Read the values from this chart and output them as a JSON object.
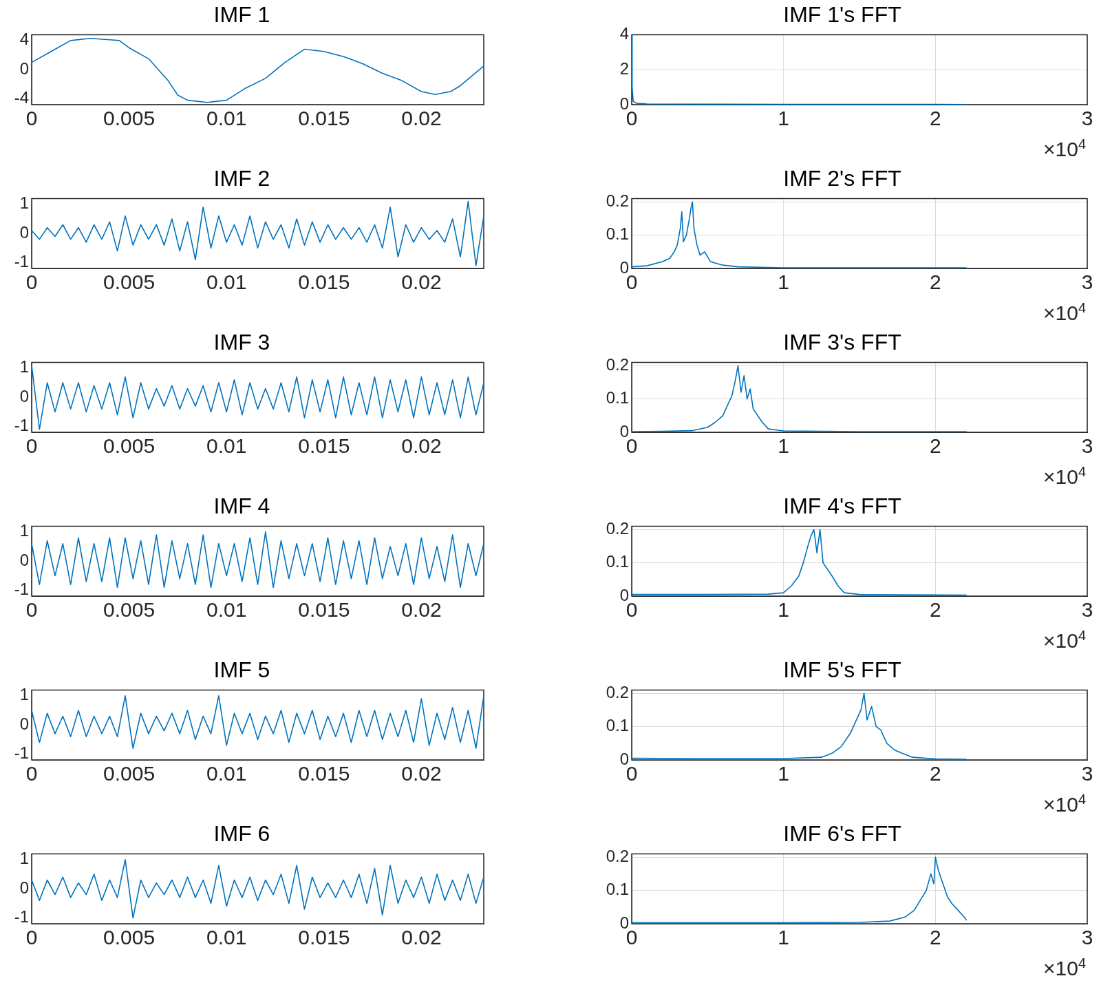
{
  "chart_data": [
    {
      "type": "line",
      "title": "IMF 1",
      "xlim": [
        0,
        0.0232
      ],
      "xticks": [
        0,
        0.005,
        0.01,
        0.015,
        0.02
      ],
      "ylim": [
        -4.8,
        4.8
      ],
      "yticks": [
        -4,
        0,
        4
      ],
      "grid": false,
      "series": [
        {
          "color": "#0072bd",
          "x": [
            0,
            0.001,
            0.002,
            0.003,
            0.004,
            0.0045,
            0.005,
            0.006,
            0.007,
            0.0075,
            0.008,
            0.009,
            0.01,
            0.011,
            0.012,
            0.013,
            0.014,
            0.015,
            0.016,
            0.017,
            0.018,
            0.019,
            0.02,
            0.0207,
            0.0215,
            0.022,
            0.0232
          ],
          "values": [
            1,
            2.5,
            4,
            4.3,
            4.1,
            4,
            3,
            1.5,
            -1.5,
            -3.5,
            -4.2,
            -4.5,
            -4.2,
            -2.5,
            -1.2,
            1,
            2.8,
            2.5,
            1.8,
            0.8,
            -0.5,
            -1.5,
            -3,
            -3.4,
            -3,
            -2.2,
            0.5
          ]
        }
      ]
    },
    {
      "type": "line",
      "title": "IMF 1's FFT",
      "xlim": [
        0,
        3
      ],
      "xticks": [
        0,
        1,
        2,
        3
      ],
      "ylim": [
        0,
        4
      ],
      "yticks": [
        0,
        2,
        4
      ],
      "grid": true,
      "annotations": [
        "×10$^{4}$"
      ],
      "series": [
        {
          "color": "#0072bd",
          "x": [
            0,
            0.003,
            0.01,
            0.03,
            0.1,
            0.5,
            1,
            1.5,
            2,
            2.205
          ],
          "values": [
            4,
            1,
            0.2,
            0.08,
            0.04,
            0.03,
            0.02,
            0.02,
            0.02,
            0.01
          ]
        }
      ]
    },
    {
      "type": "line",
      "title": "IMF 2",
      "xlim": [
        0,
        0.0232
      ],
      "xticks": [
        0,
        0.005,
        0.01,
        0.015,
        0.02
      ],
      "ylim": [
        -1.2,
        1.2
      ],
      "yticks": [
        -1,
        0,
        1
      ],
      "grid": false,
      "series": [
        {
          "color": "#0072bd",
          "x": [
            0,
            0.0004,
            0.0008,
            0.0012,
            0.0016,
            0.002,
            0.0024,
            0.0028,
            0.0032,
            0.0036,
            0.004,
            0.0044,
            0.0048,
            0.0052,
            0.0056,
            0.006,
            0.0064,
            0.0068,
            0.0072,
            0.0076,
            0.008,
            0.0084,
            0.0088,
            0.0092,
            0.0096,
            0.01,
            0.0104,
            0.0108,
            0.0112,
            0.0116,
            0.012,
            0.0124,
            0.0128,
            0.0132,
            0.0136,
            0.014,
            0.0144,
            0.0148,
            0.0152,
            0.0156,
            0.016,
            0.0164,
            0.0168,
            0.0172,
            0.0176,
            0.018,
            0.0184,
            0.0188,
            0.0192,
            0.0196,
            0.02,
            0.0204,
            0.0208,
            0.0212,
            0.0216,
            0.022,
            0.0224,
            0.0228,
            0.0232
          ],
          "values": [
            0.1,
            -0.2,
            0.2,
            -0.1,
            0.3,
            -0.2,
            0.2,
            -0.3,
            0.3,
            -0.2,
            0.4,
            -0.6,
            0.6,
            -0.4,
            0.3,
            -0.2,
            0.3,
            -0.4,
            0.5,
            -0.6,
            0.4,
            -0.9,
            0.9,
            -0.5,
            0.6,
            -0.3,
            0.3,
            -0.4,
            0.6,
            -0.5,
            0.4,
            -0.2,
            0.3,
            -0.5,
            0.5,
            -0.4,
            0.4,
            -0.3,
            0.3,
            -0.2,
            0.2,
            -0.2,
            0.2,
            -0.3,
            0.3,
            -0.5,
            0.9,
            -0.8,
            0.3,
            -0.3,
            0.2,
            -0.2,
            0.1,
            -0.3,
            0.5,
            -0.8,
            1.1,
            -1.1,
            0.6
          ]
        }
      ]
    },
    {
      "type": "line",
      "title": "IMF 2's FFT",
      "xlim": [
        0,
        3
      ],
      "xticks": [
        0,
        1,
        2,
        3
      ],
      "ylim": [
        0,
        0.21
      ],
      "yticks": [
        0,
        0.1,
        0.2
      ],
      "grid": true,
      "annotations": [
        "×10$^{4}$"
      ],
      "series": [
        {
          "color": "#0072bd",
          "x": [
            0,
            0.1,
            0.2,
            0.25,
            0.28,
            0.3,
            0.32,
            0.33,
            0.34,
            0.36,
            0.38,
            0.39,
            0.4,
            0.41,
            0.43,
            0.45,
            0.48,
            0.52,
            0.6,
            0.7,
            1,
            1.5,
            2.205
          ],
          "values": [
            0.005,
            0.008,
            0.02,
            0.03,
            0.05,
            0.07,
            0.12,
            0.17,
            0.08,
            0.1,
            0.15,
            0.18,
            0.2,
            0.12,
            0.07,
            0.04,
            0.05,
            0.02,
            0.01,
            0.005,
            0.002,
            0.002,
            0.002
          ]
        }
      ]
    },
    {
      "type": "line",
      "title": "IMF 3",
      "xlim": [
        0,
        0.0232
      ],
      "xticks": [
        0,
        0.005,
        0.01,
        0.015,
        0.02
      ],
      "ylim": [
        -1.2,
        1.2
      ],
      "yticks": [
        -1,
        0,
        1
      ],
      "grid": false,
      "series": [
        {
          "color": "#0072bd",
          "x": [
            0,
            0.0004,
            0.0008,
            0.0012,
            0.0016,
            0.002,
            0.0024,
            0.0028,
            0.0032,
            0.0036,
            0.004,
            0.0044,
            0.0048,
            0.0052,
            0.0056,
            0.006,
            0.0064,
            0.0068,
            0.0072,
            0.0076,
            0.008,
            0.0084,
            0.0088,
            0.0092,
            0.0096,
            0.01,
            0.0104,
            0.0108,
            0.0112,
            0.0116,
            0.012,
            0.0124,
            0.0128,
            0.0132,
            0.0136,
            0.014,
            0.0144,
            0.0148,
            0.0152,
            0.0156,
            0.016,
            0.0164,
            0.0168,
            0.0172,
            0.0176,
            0.018,
            0.0184,
            0.0188,
            0.0192,
            0.0196,
            0.02,
            0.0204,
            0.0208,
            0.0212,
            0.0216,
            0.022,
            0.0224,
            0.0228,
            0.0232
          ],
          "values": [
            1.1,
            -1.1,
            0.5,
            -0.5,
            0.5,
            -0.4,
            0.5,
            -0.5,
            0.4,
            -0.4,
            0.5,
            -0.6,
            0.7,
            -0.7,
            0.5,
            -0.4,
            0.3,
            -0.3,
            0.4,
            -0.4,
            0.3,
            -0.3,
            0.4,
            -0.5,
            0.5,
            -0.5,
            0.6,
            -0.6,
            0.5,
            -0.4,
            0.3,
            -0.4,
            0.5,
            -0.5,
            0.7,
            -0.7,
            0.6,
            -0.5,
            0.6,
            -0.7,
            0.7,
            -0.6,
            0.5,
            -0.6,
            0.7,
            -0.7,
            0.6,
            -0.5,
            0.6,
            -0.7,
            0.7,
            -0.6,
            0.5,
            -0.6,
            0.6,
            -0.7,
            0.7,
            -0.6,
            0.5
          ]
        }
      ]
    },
    {
      "type": "line",
      "title": "IMF 3's FFT",
      "xlim": [
        0,
        3
      ],
      "xticks": [
        0,
        1,
        2,
        3
      ],
      "ylim": [
        0,
        0.21
      ],
      "yticks": [
        0,
        0.1,
        0.2
      ],
      "grid": true,
      "annotations": [
        "×10$^{4}$"
      ],
      "series": [
        {
          "color": "#0072bd",
          "x": [
            0,
            0.2,
            0.4,
            0.5,
            0.55,
            0.6,
            0.63,
            0.66,
            0.68,
            0.7,
            0.72,
            0.74,
            0.76,
            0.78,
            0.8,
            0.83,
            0.86,
            0.9,
            1,
            1.5,
            2.205
          ],
          "values": [
            0.002,
            0.003,
            0.005,
            0.015,
            0.03,
            0.05,
            0.08,
            0.11,
            0.15,
            0.2,
            0.12,
            0.17,
            0.1,
            0.13,
            0.07,
            0.05,
            0.03,
            0.01,
            0.004,
            0.002,
            0.002
          ]
        }
      ]
    },
    {
      "type": "line",
      "title": "IMF 4",
      "xlim": [
        0,
        0.0232
      ],
      "xticks": [
        0,
        0.005,
        0.01,
        0.015,
        0.02
      ],
      "ylim": [
        -1.2,
        1.2
      ],
      "yticks": [
        -1,
        0,
        1
      ],
      "grid": false,
      "series": [
        {
          "color": "#0072bd",
          "x": [
            0,
            0.0004,
            0.0008,
            0.0012,
            0.0016,
            0.002,
            0.0024,
            0.0028,
            0.0032,
            0.0036,
            0.004,
            0.0044,
            0.0048,
            0.0052,
            0.0056,
            0.006,
            0.0064,
            0.0068,
            0.0072,
            0.0076,
            0.008,
            0.0084,
            0.0088,
            0.0092,
            0.0096,
            0.01,
            0.0104,
            0.0108,
            0.0112,
            0.0116,
            0.012,
            0.0124,
            0.0128,
            0.0132,
            0.0136,
            0.014,
            0.0144,
            0.0148,
            0.0152,
            0.0156,
            0.016,
            0.0164,
            0.0168,
            0.0172,
            0.0176,
            0.018,
            0.0184,
            0.0188,
            0.0192,
            0.0196,
            0.02,
            0.0204,
            0.0208,
            0.0212,
            0.0216,
            0.022,
            0.0224,
            0.0228,
            0.0232
          ],
          "values": [
            0.6,
            -0.8,
            0.7,
            -0.5,
            0.6,
            -0.8,
            0.8,
            -0.7,
            0.6,
            -0.7,
            0.8,
            -0.9,
            0.8,
            -0.6,
            0.7,
            -0.8,
            0.9,
            -0.9,
            0.7,
            -0.6,
            0.6,
            -0.8,
            0.9,
            -0.9,
            0.6,
            -0.5,
            0.6,
            -0.7,
            0.8,
            -0.8,
            1.0,
            -0.9,
            0.7,
            -0.6,
            0.6,
            -0.5,
            0.6,
            -0.7,
            0.8,
            -0.8,
            0.7,
            -0.6,
            0.7,
            -0.8,
            0.8,
            -0.6,
            0.5,
            -0.5,
            0.6,
            -0.8,
            0.8,
            -0.6,
            0.5,
            -0.7,
            0.9,
            -0.9,
            0.6,
            -0.5,
            0.6
          ]
        }
      ]
    },
    {
      "type": "line",
      "title": "IMF 4's FFT",
      "xlim": [
        0,
        3
      ],
      "xticks": [
        0,
        1,
        2,
        3
      ],
      "ylim": [
        0,
        0.21
      ],
      "yticks": [
        0,
        0.1,
        0.2
      ],
      "grid": true,
      "annotations": [
        "×10$^{4}$"
      ],
      "series": [
        {
          "color": "#0072bd",
          "x": [
            0,
            0.5,
            0.9,
            1,
            1.05,
            1.1,
            1.13,
            1.16,
            1.18,
            1.2,
            1.22,
            1.24,
            1.26,
            1.29,
            1.32,
            1.36,
            1.4,
            1.5,
            2.205
          ],
          "values": [
            0.005,
            0.005,
            0.006,
            0.01,
            0.03,
            0.06,
            0.1,
            0.15,
            0.18,
            0.2,
            0.13,
            0.2,
            0.1,
            0.08,
            0.06,
            0.03,
            0.01,
            0.005,
            0.003
          ]
        }
      ]
    },
    {
      "type": "line",
      "title": "IMF 5",
      "xlim": [
        0,
        0.0232
      ],
      "xticks": [
        0,
        0.005,
        0.01,
        0.015,
        0.02
      ],
      "ylim": [
        -1.2,
        1.2
      ],
      "yticks": [
        -1,
        0,
        1
      ],
      "grid": false,
      "series": [
        {
          "color": "#0072bd",
          "x": [
            0,
            0.0004,
            0.0008,
            0.0012,
            0.0016,
            0.002,
            0.0024,
            0.0028,
            0.0032,
            0.0036,
            0.004,
            0.0044,
            0.0048,
            0.0052,
            0.0056,
            0.006,
            0.0064,
            0.0068,
            0.0072,
            0.0076,
            0.008,
            0.0084,
            0.0088,
            0.0092,
            0.0096,
            0.01,
            0.0104,
            0.0108,
            0.0112,
            0.0116,
            0.012,
            0.0124,
            0.0128,
            0.0132,
            0.0136,
            0.014,
            0.0144,
            0.0148,
            0.0152,
            0.0156,
            0.016,
            0.0164,
            0.0168,
            0.0172,
            0.0176,
            0.018,
            0.0184,
            0.0188,
            0.0192,
            0.0196,
            0.02,
            0.0204,
            0.0208,
            0.0212,
            0.0216,
            0.022,
            0.0224,
            0.0228,
            0.0232
          ],
          "values": [
            0.5,
            -0.6,
            0.4,
            -0.3,
            0.3,
            -0.4,
            0.5,
            -0.4,
            0.3,
            -0.3,
            0.3,
            -0.4,
            1.0,
            -0.8,
            0.4,
            -0.3,
            0.3,
            -0.2,
            0.4,
            -0.3,
            0.5,
            -0.5,
            0.3,
            -0.3,
            1.0,
            -0.7,
            0.4,
            -0.3,
            0.4,
            -0.5,
            0.3,
            -0.3,
            0.5,
            -0.6,
            0.4,
            -0.3,
            0.5,
            -0.5,
            0.3,
            -0.4,
            0.4,
            -0.6,
            0.5,
            -0.4,
            0.5,
            -0.5,
            0.4,
            -0.4,
            0.5,
            -0.6,
            0.9,
            -0.7,
            0.4,
            -0.5,
            0.6,
            -0.6,
            0.5,
            -0.8,
            1.0
          ]
        }
      ]
    },
    {
      "type": "line",
      "title": "IMF 5's FFT",
      "xlim": [
        0,
        3
      ],
      "xticks": [
        0,
        1,
        2,
        3
      ],
      "ylim": [
        0,
        0.21
      ],
      "yticks": [
        0,
        0.1,
        0.2
      ],
      "grid": true,
      "annotations": [
        "×10$^{4}$"
      ],
      "series": [
        {
          "color": "#0072bd",
          "x": [
            0,
            0.5,
            1,
            1.25,
            1.32,
            1.38,
            1.44,
            1.48,
            1.51,
            1.53,
            1.55,
            1.58,
            1.61,
            1.64,
            1.68,
            1.73,
            1.78,
            1.85,
            2,
            2.205
          ],
          "values": [
            0.005,
            0.004,
            0.004,
            0.008,
            0.02,
            0.04,
            0.08,
            0.12,
            0.15,
            0.2,
            0.12,
            0.16,
            0.1,
            0.09,
            0.05,
            0.03,
            0.02,
            0.008,
            0.003,
            0.002
          ]
        }
      ]
    },
    {
      "type": "line",
      "title": "IMF 6",
      "xlim": [
        0,
        0.0232
      ],
      "xticks": [
        0,
        0.005,
        0.01,
        0.015,
        0.02
      ],
      "ylim": [
        -1.2,
        1.2
      ],
      "yticks": [
        -1,
        0,
        1
      ],
      "grid": false,
      "series": [
        {
          "color": "#0072bd",
          "x": [
            0,
            0.0004,
            0.0008,
            0.0012,
            0.0016,
            0.002,
            0.0024,
            0.0028,
            0.0032,
            0.0036,
            0.004,
            0.0044,
            0.0048,
            0.0052,
            0.0056,
            0.006,
            0.0064,
            0.0068,
            0.0072,
            0.0076,
            0.008,
            0.0084,
            0.0088,
            0.0092,
            0.0096,
            0.01,
            0.0104,
            0.0108,
            0.0112,
            0.0116,
            0.012,
            0.0124,
            0.0128,
            0.0132,
            0.0136,
            0.014,
            0.0144,
            0.0148,
            0.0152,
            0.0156,
            0.016,
            0.0164,
            0.0168,
            0.0172,
            0.0176,
            0.018,
            0.0184,
            0.0188,
            0.0192,
            0.0196,
            0.02,
            0.0204,
            0.0208,
            0.0212,
            0.0216,
            0.022,
            0.0224,
            0.0228,
            0.0232
          ],
          "values": [
            0.3,
            -0.4,
            0.3,
            -0.2,
            0.4,
            -0.3,
            0.2,
            -0.2,
            0.5,
            -0.4,
            0.3,
            -0.3,
            1.0,
            -1.0,
            0.3,
            -0.3,
            0.2,
            -0.2,
            0.3,
            -0.3,
            0.4,
            -0.3,
            0.3,
            -0.5,
            0.8,
            -0.6,
            0.3,
            -0.3,
            0.4,
            -0.4,
            0.3,
            -0.2,
            0.5,
            -0.5,
            0.8,
            -0.7,
            0.4,
            -0.3,
            0.2,
            -0.3,
            0.3,
            -0.3,
            0.5,
            -0.5,
            0.7,
            -0.9,
            0.8,
            -0.5,
            0.3,
            -0.3,
            0.4,
            -0.5,
            0.5,
            -0.4,
            0.3,
            -0.4,
            0.5,
            -0.5,
            0.4
          ]
        }
      ]
    },
    {
      "type": "line",
      "title": "IMF 6's FFT",
      "xlim": [
        0,
        3
      ],
      "xticks": [
        0,
        1,
        2,
        3
      ],
      "ylim": [
        0,
        0.21
      ],
      "yticks": [
        0,
        0.1,
        0.2
      ],
      "grid": true,
      "annotations": [
        "×10$^{4}$"
      ],
      "series": [
        {
          "color": "#0072bd",
          "x": [
            0,
            0.5,
            1,
            1.5,
            1.7,
            1.8,
            1.86,
            1.9,
            1.94,
            1.97,
            1.99,
            2,
            2.02,
            2.05,
            2.08,
            2.11,
            2.15,
            2.19,
            2.205
          ],
          "values": [
            0.003,
            0.003,
            0.003,
            0.004,
            0.008,
            0.02,
            0.04,
            0.07,
            0.1,
            0.15,
            0.12,
            0.2,
            0.16,
            0.12,
            0.08,
            0.06,
            0.04,
            0.02,
            0.01
          ]
        }
      ]
    }
  ]
}
